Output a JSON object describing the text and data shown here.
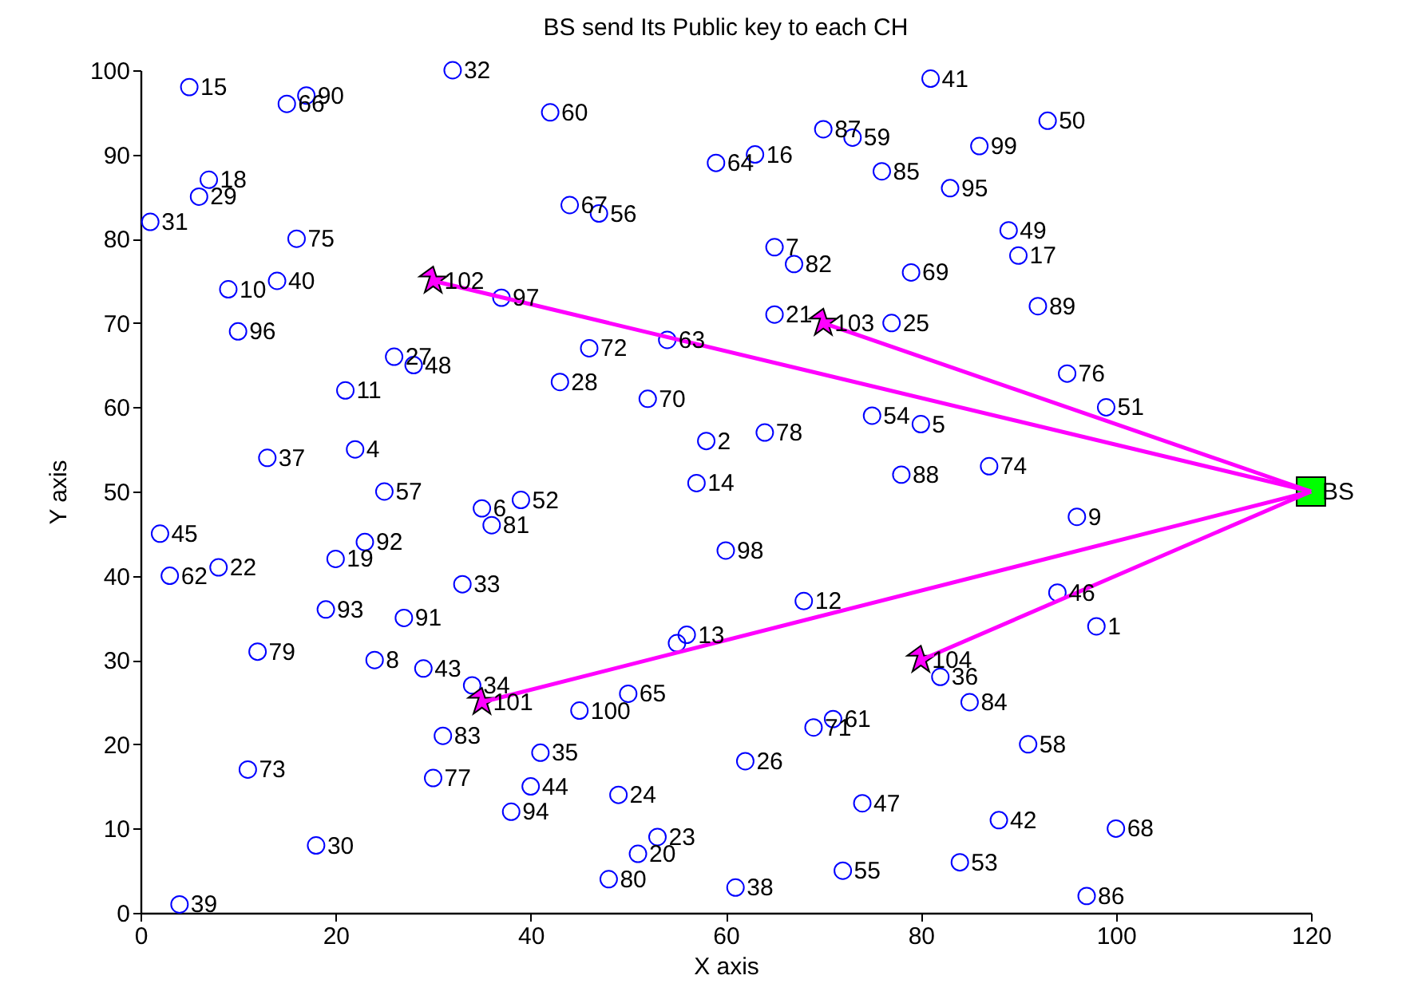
{
  "chart_data": {
    "type": "scatter",
    "title": "BS send Its Public key to each CH",
    "xlabel": "X axis",
    "ylabel": "Y axis",
    "xlim": [
      0,
      120
    ],
    "ylim": [
      0,
      100
    ],
    "xticks": [
      0,
      20,
      40,
      60,
      80,
      100,
      120
    ],
    "yticks": [
      0,
      10,
      20,
      30,
      40,
      50,
      60,
      70,
      80,
      90,
      100
    ],
    "grid": false,
    "legend": false,
    "series": [
      {
        "type": "line",
        "color": "#ff00ff",
        "line_style": "solid",
        "marker": "none",
        "x": [
          30,
          120
        ],
        "values": [
          75,
          50
        ]
      },
      {
        "type": "line",
        "color": "#ff00ff",
        "line_style": "solid",
        "marker": "none",
        "x": [
          70,
          120
        ],
        "values": [
          70,
          50
        ]
      },
      {
        "type": "line",
        "color": "#ff00ff",
        "line_style": "solid",
        "marker": "none",
        "x": [
          35,
          120
        ],
        "values": [
          25,
          50
        ]
      },
      {
        "type": "line",
        "color": "#ff00ff",
        "line_style": "solid",
        "marker": "none",
        "x": [
          80,
          120
        ],
        "values": [
          30,
          50
        ]
      },
      {
        "type": "scatter",
        "color": "#0000ff",
        "marker": "circle",
        "x": [
          98,
          58,
          55,
          22,
          80,
          35,
          65,
          24,
          96,
          9,
          21,
          68,
          56,
          57,
          5,
          63,
          90,
          7,
          20,
          51,
          65,
          8,
          53,
          49,
          77,
          62,
          26,
          43,
          6,
          18,
          1,
          32,
          33,
          34,
          41,
          82,
          13,
          61,
          4,
          14,
          81,
          88,
          29,
          40,
          2,
          94,
          74,
          28,
          89,
          93,
          99,
          39,
          84,
          75,
          72,
          47,
          25,
          91,
          73,
          42,
          71,
          3,
          54,
          59,
          50,
          15,
          44,
          100,
          79,
          52,
          69,
          46,
          11,
          87,
          16,
          95,
          30,
          64,
          12,
          48,
          36,
          67,
          31,
          85,
          76,
          97,
          70,
          78,
          92,
          17,
          27,
          23,
          19,
          38,
          83,
          10,
          37,
          60,
          86,
          45
        ],
        "values": [
          34,
          56,
          32,
          55,
          58,
          48,
          79,
          30,
          47,
          74,
          62,
          37,
          33,
          51,
          98,
          90,
          78,
          87,
          42,
          7,
          71,
          41,
          9,
          14,
          70,
          18,
          66,
          63,
          85,
          8,
          82,
          100,
          39,
          27,
          19,
          28,
          54,
          3,
          1,
          75,
          99,
          11,
          29,
          15,
          45,
          38,
          13,
          65,
          81,
          94,
          60,
          49,
          6,
          59,
          5,
          83,
          50,
          20,
          92,
          95,
          23,
          40,
          68,
          89,
          26,
          96,
          84,
          10,
          76,
          61,
          22,
          67,
          17,
          53,
          80,
          64,
          16,
          57,
          31,
          4,
          46,
          77,
          21,
          25,
          88,
          2,
          93,
          52,
          72,
          97,
          35,
          44,
          36,
          12,
          86,
          69,
          73,
          43,
          91,
          24
        ]
      },
      {
        "type": "scatter",
        "color": "#ff00ff",
        "marker": "star",
        "x": [
          35,
          30,
          70,
          80
        ],
        "values": [
          25,
          75,
          70,
          30
        ]
      },
      {
        "type": "scatter",
        "color": "#00ff00",
        "marker": "square",
        "x": [
          120
        ],
        "values": [
          50
        ]
      }
    ],
    "annotations": [
      {
        "text": "1",
        "x": 98,
        "y": 34
      },
      {
        "text": "2",
        "x": 58,
        "y": 56
      },
      {
        "text": "4",
        "x": 22,
        "y": 55
      },
      {
        "text": "5",
        "x": 80,
        "y": 58
      },
      {
        "text": "6",
        "x": 35,
        "y": 48
      },
      {
        "text": "7",
        "x": 65,
        "y": 79
      },
      {
        "text": "8",
        "x": 24,
        "y": 30
      },
      {
        "text": "9",
        "x": 96,
        "y": 47
      },
      {
        "text": "10",
        "x": 9,
        "y": 74
      },
      {
        "text": "11",
        "x": 21,
        "y": 62
      },
      {
        "text": "12",
        "x": 68,
        "y": 37
      },
      {
        "text": "13",
        "x": 56,
        "y": 33
      },
      {
        "text": "14",
        "x": 57,
        "y": 51
      },
      {
        "text": "15",
        "x": 5,
        "y": 98
      },
      {
        "text": "16",
        "x": 63,
        "y": 90
      },
      {
        "text": "17",
        "x": 90,
        "y": 78
      },
      {
        "text": "18",
        "x": 7,
        "y": 87
      },
      {
        "text": "19",
        "x": 20,
        "y": 42
      },
      {
        "text": "20",
        "x": 51,
        "y": 7
      },
      {
        "text": "21",
        "x": 65,
        "y": 71
      },
      {
        "text": "22",
        "x": 8,
        "y": 41
      },
      {
        "text": "23",
        "x": 53,
        "y": 9
      },
      {
        "text": "24",
        "x": 49,
        "y": 14
      },
      {
        "text": "25",
        "x": 77,
        "y": 70
      },
      {
        "text": "26",
        "x": 62,
        "y": 18
      },
      {
        "text": "27",
        "x": 26,
        "y": 66
      },
      {
        "text": "28",
        "x": 43,
        "y": 63
      },
      {
        "text": "29",
        "x": 6,
        "y": 85
      },
      {
        "text": "30",
        "x": 18,
        "y": 8
      },
      {
        "text": "31",
        "x": 1,
        "y": 82
      },
      {
        "text": "32",
        "x": 32,
        "y": 100
      },
      {
        "text": "33",
        "x": 33,
        "y": 39
      },
      {
        "text": "34",
        "x": 34,
        "y": 27
      },
      {
        "text": "35",
        "x": 41,
        "y": 19
      },
      {
        "text": "36",
        "x": 82,
        "y": 28
      },
      {
        "text": "37",
        "x": 13,
        "y": 54
      },
      {
        "text": "38",
        "x": 61,
        "y": 3
      },
      {
        "text": "39",
        "x": 4,
        "y": 1
      },
      {
        "text": "40",
        "x": 14,
        "y": 75
      },
      {
        "text": "41",
        "x": 81,
        "y": 99
      },
      {
        "text": "42",
        "x": 88,
        "y": 11
      },
      {
        "text": "43",
        "x": 29,
        "y": 29
      },
      {
        "text": "44",
        "x": 40,
        "y": 15
      },
      {
        "text": "45",
        "x": 2,
        "y": 45
      },
      {
        "text": "46",
        "x": 94,
        "y": 38
      },
      {
        "text": "47",
        "x": 74,
        "y": 13
      },
      {
        "text": "48",
        "x": 28,
        "y": 65
      },
      {
        "text": "49",
        "x": 89,
        "y": 81
      },
      {
        "text": "50",
        "x": 93,
        "y": 94
      },
      {
        "text": "51",
        "x": 99,
        "y": 60
      },
      {
        "text": "52",
        "x": 39,
        "y": 49
      },
      {
        "text": "53",
        "x": 84,
        "y": 6
      },
      {
        "text": "54",
        "x": 75,
        "y": 59
      },
      {
        "text": "55",
        "x": 72,
        "y": 5
      },
      {
        "text": "56",
        "x": 47,
        "y": 83
      },
      {
        "text": "57",
        "x": 25,
        "y": 50
      },
      {
        "text": "58",
        "x": 91,
        "y": 20
      },
      {
        "text": "59",
        "x": 73,
        "y": 92
      },
      {
        "text": "60",
        "x": 42,
        "y": 95
      },
      {
        "text": "61",
        "x": 71,
        "y": 23
      },
      {
        "text": "62",
        "x": 3,
        "y": 40
      },
      {
        "text": "63",
        "x": 54,
        "y": 68
      },
      {
        "text": "64",
        "x": 59,
        "y": 89
      },
      {
        "text": "65",
        "x": 50,
        "y": 26
      },
      {
        "text": "66",
        "x": 15,
        "y": 96
      },
      {
        "text": "67",
        "x": 44,
        "y": 84
      },
      {
        "text": "68",
        "x": 100,
        "y": 10
      },
      {
        "text": "69",
        "x": 79,
        "y": 76
      },
      {
        "text": "70",
        "x": 52,
        "y": 61
      },
      {
        "text": "71",
        "x": 69,
        "y": 22
      },
      {
        "text": "72",
        "x": 46,
        "y": 67
      },
      {
        "text": "73",
        "x": 11,
        "y": 17
      },
      {
        "text": "74",
        "x": 87,
        "y": 53
      },
      {
        "text": "75",
        "x": 16,
        "y": 80
      },
      {
        "text": "76",
        "x": 95,
        "y": 64
      },
      {
        "text": "77",
        "x": 30,
        "y": 16
      },
      {
        "text": "78",
        "x": 64,
        "y": 57
      },
      {
        "text": "79",
        "x": 12,
        "y": 31
      },
      {
        "text": "80",
        "x": 48,
        "y": 4
      },
      {
        "text": "81",
        "x": 36,
        "y": 46
      },
      {
        "text": "82",
        "x": 67,
        "y": 77
      },
      {
        "text": "83",
        "x": 31,
        "y": 21
      },
      {
        "text": "84",
        "x": 85,
        "y": 25
      },
      {
        "text": "85",
        "x": 76,
        "y": 88
      },
      {
        "text": "86",
        "x": 97,
        "y": 2
      },
      {
        "text": "87",
        "x": 70,
        "y": 93
      },
      {
        "text": "88",
        "x": 78,
        "y": 52
      },
      {
        "text": "89",
        "x": 92,
        "y": 72
      },
      {
        "text": "90",
        "x": 17,
        "y": 97
      },
      {
        "text": "91",
        "x": 27,
        "y": 35
      },
      {
        "text": "92",
        "x": 23,
        "y": 44
      },
      {
        "text": "93",
        "x": 19,
        "y": 36
      },
      {
        "text": "94",
        "x": 38,
        "y": 12
      },
      {
        "text": "95",
        "x": 83,
        "y": 86
      },
      {
        "text": "96",
        "x": 10,
        "y": 69
      },
      {
        "text": "97",
        "x": 37,
        "y": 73
      },
      {
        "text": "98",
        "x": 60,
        "y": 43
      },
      {
        "text": "99",
        "x": 86,
        "y": 91
      },
      {
        "text": "100",
        "x": 45,
        "y": 24
      },
      {
        "text": "101",
        "x": 35,
        "y": 25
      },
      {
        "text": "102",
        "x": 30,
        "y": 75
      },
      {
        "text": "103",
        "x": 70,
        "y": 70
      },
      {
        "text": "104",
        "x": 80,
        "y": 30
      },
      {
        "text": "BS",
        "x": 120,
        "y": 50
      }
    ]
  }
}
